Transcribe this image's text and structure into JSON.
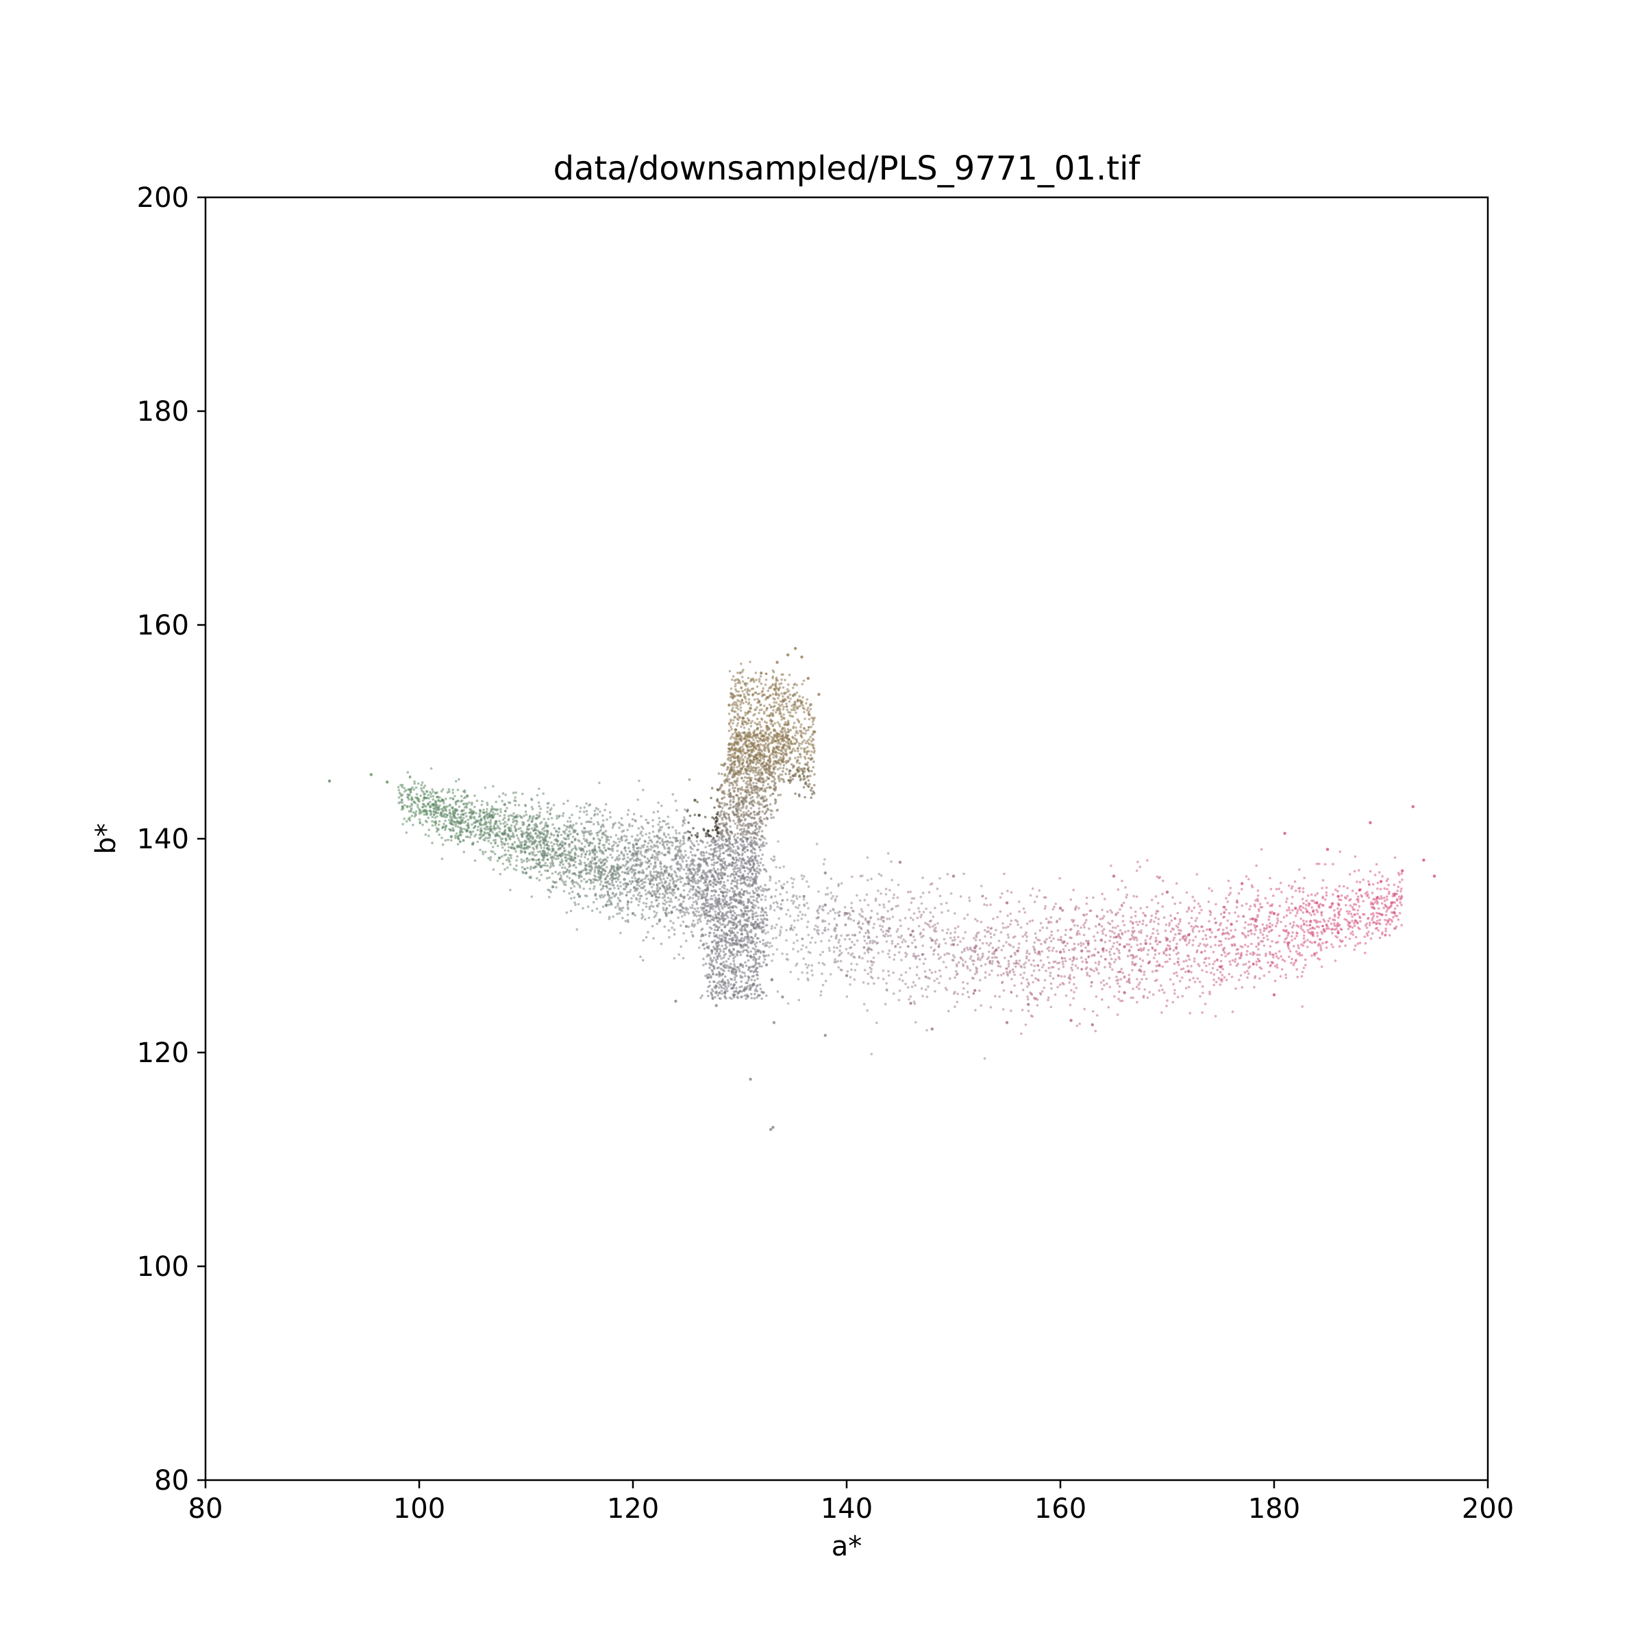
{
  "chart_data": {
    "type": "scatter",
    "title": "data/downsampled/PLS_9771_01.tif",
    "xlabel": "a*",
    "ylabel": "b*",
    "xlim": [
      80,
      200
    ],
    "ylim": [
      80,
      200
    ],
    "xticks": [
      80,
      100,
      120,
      140,
      160,
      180,
      200
    ],
    "yticks": [
      80,
      100,
      120,
      140,
      160,
      180,
      200
    ],
    "grid": false,
    "legend": "none",
    "colors": {
      "green_region": "#5e8c64",
      "gray_region": "#84828a",
      "brown_region": "#8f7a54",
      "pink_region": "#d44a78",
      "axis": "#000000"
    },
    "series": [
      {
        "points": [
          [
            91.6,
            145.4
          ],
          [
            95.5,
            146.0
          ],
          [
            97.0,
            145.3
          ],
          [
            99.2,
            144.6
          ],
          [
            100.5,
            143.8
          ],
          [
            101.3,
            143.2
          ],
          [
            102.2,
            143.6
          ],
          [
            103.1,
            142.9
          ],
          [
            104.0,
            142.6
          ],
          [
            105.0,
            142.4
          ],
          [
            106.1,
            142.0
          ],
          [
            107.2,
            141.6
          ],
          [
            108.4,
            141.0
          ],
          [
            109.6,
            140.4
          ],
          [
            110.8,
            139.7
          ],
          [
            112.0,
            139.1
          ],
          [
            113.2,
            138.5
          ],
          [
            114.4,
            138.0
          ],
          [
            115.6,
            137.5
          ],
          [
            116.8,
            137.0
          ],
          [
            118.0,
            136.6
          ],
          [
            119.2,
            136.2
          ],
          [
            120.4,
            136.0
          ],
          [
            121.6,
            135.8
          ],
          [
            122.8,
            135.6
          ],
          [
            124.0,
            135.6
          ],
          [
            125.2,
            135.8
          ],
          [
            103.0,
            140.2
          ],
          [
            105.0,
            139.5
          ],
          [
            107.5,
            138.2
          ],
          [
            110.0,
            136.8
          ],
          [
            112.5,
            135.5
          ],
          [
            115.0,
            134.6
          ],
          [
            117.5,
            133.8
          ],
          [
            120.0,
            133.0
          ],
          [
            122.5,
            132.4
          ],
          [
            125.0,
            131.8
          ],
          [
            104.5,
            144.0
          ],
          [
            108.0,
            143.2
          ],
          [
            112.0,
            141.2
          ],
          [
            116.0,
            139.6
          ],
          [
            120.0,
            138.6
          ],
          [
            124.0,
            138.4
          ]
        ]
      },
      {
        "points": [
          [
            127.0,
            127.0
          ],
          [
            127.8,
            126.2
          ],
          [
            128.6,
            125.6
          ],
          [
            129.5,
            125.4
          ],
          [
            130.4,
            125.8
          ],
          [
            131.3,
            126.4
          ],
          [
            132.2,
            125.6
          ],
          [
            133.0,
            126.8
          ],
          [
            134.0,
            125.2
          ],
          [
            127.4,
            129.5
          ],
          [
            128.3,
            130.5
          ],
          [
            129.2,
            131.2
          ],
          [
            130.1,
            130.0
          ],
          [
            131.0,
            129.0
          ],
          [
            131.8,
            131.8
          ],
          [
            132.5,
            128.2
          ],
          [
            128.0,
            133.0
          ],
          [
            129.6,
            134.2
          ],
          [
            131.2,
            133.6
          ],
          [
            126.5,
            131.0
          ],
          [
            133.2,
            122.8
          ],
          [
            131.0,
            117.5
          ],
          [
            132.9,
            112.8
          ],
          [
            133.1,
            113.0
          ],
          [
            138.0,
            121.6
          ],
          [
            124.0,
            124.8
          ],
          [
            127.8,
            124.4
          ]
        ]
      },
      {
        "points": [
          [
            127.2,
            137.0
          ],
          [
            127.6,
            139.0
          ],
          [
            127.9,
            141.0
          ],
          [
            128.1,
            143.0
          ],
          [
            128.3,
            145.0
          ],
          [
            128.6,
            147.0
          ],
          [
            129.0,
            148.8
          ],
          [
            129.6,
            150.2
          ],
          [
            130.3,
            151.3
          ],
          [
            131.0,
            152.2
          ],
          [
            131.8,
            152.8
          ],
          [
            132.6,
            153.2
          ],
          [
            133.4,
            153.5
          ],
          [
            134.2,
            153.6
          ],
          [
            135.0,
            153.4
          ],
          [
            135.8,
            152.8
          ],
          [
            136.5,
            151.6
          ],
          [
            137.0,
            150.0
          ],
          [
            130.2,
            143.5
          ],
          [
            131.0,
            145.5
          ],
          [
            131.6,
            147.5
          ],
          [
            132.2,
            149.6
          ],
          [
            133.0,
            151.0
          ],
          [
            129.0,
            152.5
          ],
          [
            130.5,
            154.5
          ],
          [
            132.0,
            155.5
          ],
          [
            133.5,
            156.5
          ],
          [
            134.5,
            157.2
          ],
          [
            135.2,
            157.8
          ],
          [
            135.8,
            157.0
          ],
          [
            136.4,
            155.0
          ],
          [
            137.4,
            153.5
          ],
          [
            126.2,
            142.2
          ],
          [
            125.8,
            143.6
          ]
        ]
      },
      {
        "points": [
          [
            134.0,
            135.4
          ],
          [
            136.0,
            134.6
          ],
          [
            138.0,
            133.8
          ],
          [
            140.0,
            133.0
          ],
          [
            142.0,
            132.2
          ],
          [
            144.0,
            131.6
          ],
          [
            146.0,
            131.0
          ],
          [
            148.0,
            130.5
          ],
          [
            150.0,
            130.1
          ],
          [
            152.0,
            129.8
          ],
          [
            154.0,
            129.6
          ],
          [
            156.0,
            129.5
          ],
          [
            158.0,
            129.4
          ],
          [
            160.0,
            129.4
          ],
          [
            162.0,
            129.5
          ],
          [
            164.0,
            129.7
          ],
          [
            166.0,
            129.9
          ],
          [
            168.0,
            130.2
          ],
          [
            170.0,
            130.6
          ],
          [
            172.0,
            131.0
          ],
          [
            174.0,
            131.5
          ],
          [
            176.0,
            132.0
          ],
          [
            178.0,
            132.5
          ],
          [
            180.0,
            133.0
          ],
          [
            182.0,
            133.5
          ],
          [
            184.0,
            134.0
          ],
          [
            186.0,
            134.6
          ],
          [
            188.0,
            135.2
          ],
          [
            190.0,
            136.0
          ],
          [
            192.0,
            137.0
          ],
          [
            194.0,
            138.0
          ],
          [
            195.0,
            136.5
          ],
          [
            193.0,
            143.0
          ],
          [
            189.0,
            141.5
          ],
          [
            181.0,
            140.5
          ],
          [
            185.0,
            139.0
          ],
          [
            145.0,
            137.8
          ],
          [
            150.0,
            136.5
          ],
          [
            155.0,
            134.0
          ],
          [
            160.0,
            133.5
          ],
          [
            165.0,
            136.5
          ],
          [
            170.0,
            135.0
          ],
          [
            175.0,
            128.0
          ],
          [
            180.0,
            125.4
          ],
          [
            172.0,
            127.6
          ],
          [
            166.0,
            125.6
          ],
          [
            161.0,
            123.0
          ],
          [
            157.0,
            124.5
          ],
          [
            152.0,
            125.8
          ],
          [
            148.0,
            122.2
          ],
          [
            146.0,
            124.6
          ],
          [
            155.0,
            122.8
          ],
          [
            163.0,
            122.6
          ],
          [
            140.0,
            127.2
          ],
          [
            138.0,
            136.8
          ],
          [
            177.0,
            135.8
          ],
          [
            186.0,
            131.2
          ],
          [
            191.0,
            134.0
          ]
        ]
      }
    ]
  }
}
